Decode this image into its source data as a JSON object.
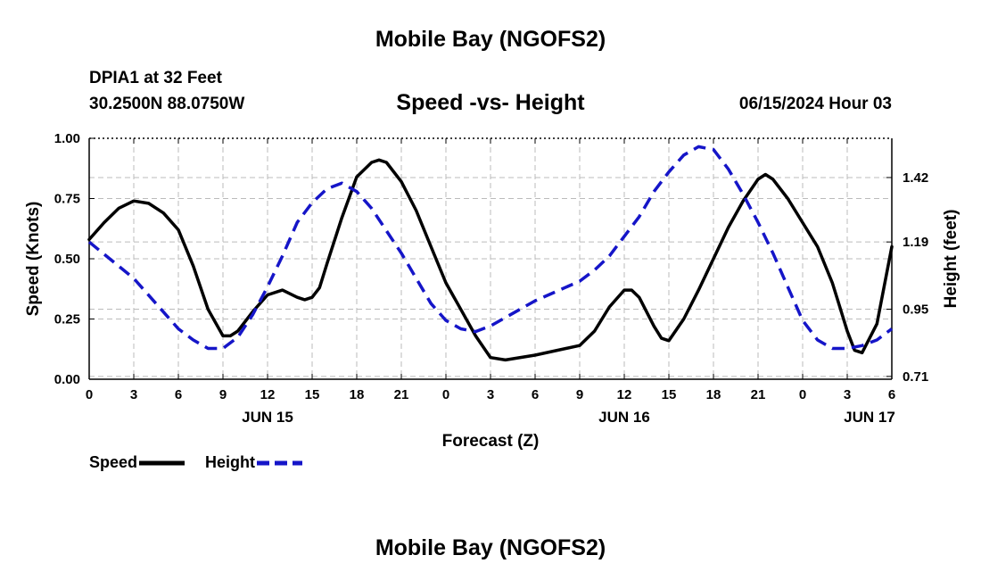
{
  "header": {
    "title": "Mobile Bay (NGOFS2)",
    "station": "DPIA1 at 32 Feet",
    "coords": "30.2500N  88.0750W",
    "subtitle": "Speed -vs- Height",
    "datetime": "06/15/2024 Hour 03"
  },
  "footer_title": "Mobile Bay (NGOFS2)",
  "colors": {
    "speed": "#000000",
    "height": "#1515c8",
    "grid": "#bbbbbb"
  },
  "chart_data": {
    "type": "line",
    "title": "Speed -vs- Height",
    "xlabel": "Forecast (Z)",
    "ylabel": "Speed (Knots)",
    "y2label": "Height (feet)",
    "x_range_hours": [
      0,
      54
    ],
    "x_ticks": [
      {
        "hour": 0,
        "label": "0"
      },
      {
        "hour": 3,
        "label": "3"
      },
      {
        "hour": 6,
        "label": "6"
      },
      {
        "hour": 9,
        "label": "9"
      },
      {
        "hour": 12,
        "label": "12"
      },
      {
        "hour": 15,
        "label": "15"
      },
      {
        "hour": 18,
        "label": "18"
      },
      {
        "hour": 21,
        "label": "21"
      },
      {
        "hour": 24,
        "label": "0"
      },
      {
        "hour": 27,
        "label": "3"
      },
      {
        "hour": 30,
        "label": "6"
      },
      {
        "hour": 33,
        "label": "9"
      },
      {
        "hour": 36,
        "label": "12"
      },
      {
        "hour": 39,
        "label": "15"
      },
      {
        "hour": 42,
        "label": "18"
      },
      {
        "hour": 45,
        "label": "21"
      },
      {
        "hour": 48,
        "label": "0"
      },
      {
        "hour": 51,
        "label": "3"
      },
      {
        "hour": 54,
        "label": "6"
      }
    ],
    "day_labels": [
      {
        "hour": 12,
        "label": "JUN 15"
      },
      {
        "hour": 36,
        "label": "JUN 16"
      },
      {
        "hour": 52.5,
        "label": "JUN 17"
      }
    ],
    "ylim": [
      0,
      1
    ],
    "yticks": [
      {
        "value": 0,
        "label": "0.00"
      },
      {
        "value": 0.25,
        "label": "0.25"
      },
      {
        "value": 0.5,
        "label": "0.50"
      },
      {
        "value": 0.75,
        "label": "0.75"
      },
      {
        "value": 1,
        "label": "1.00"
      }
    ],
    "y2lim": [
      0.7,
      1.56
    ],
    "y2ticks": [
      {
        "value": 0.71,
        "label": "0.71"
      },
      {
        "value": 0.95,
        "label": "0.95"
      },
      {
        "value": 1.19,
        "label": "1.19"
      },
      {
        "value": 1.42,
        "label": "1.42"
      }
    ],
    "series": [
      {
        "name": "Speed",
        "axis": "left",
        "style": "solid",
        "x": [
          0,
          1,
          2,
          3,
          4,
          5,
          6,
          7,
          8,
          9,
          9.5,
          10,
          11,
          12,
          13,
          14,
          14.5,
          15,
          15.5,
          16,
          17,
          18,
          19,
          19.5,
          20,
          21,
          22,
          23,
          24,
          25,
          26,
          27,
          28,
          30,
          33,
          34,
          35,
          36,
          36.5,
          37,
          38,
          38.5,
          39,
          40,
          41,
          42,
          43,
          44,
          45,
          45.5,
          46,
          47,
          48,
          49,
          50,
          50.5,
          51,
          51.5,
          52,
          53,
          54
        ],
        "values": [
          0.58,
          0.65,
          0.71,
          0.74,
          0.73,
          0.69,
          0.62,
          0.47,
          0.29,
          0.18,
          0.18,
          0.2,
          0.28,
          0.35,
          0.37,
          0.34,
          0.33,
          0.34,
          0.38,
          0.48,
          0.67,
          0.84,
          0.9,
          0.91,
          0.9,
          0.82,
          0.7,
          0.55,
          0.4,
          0.29,
          0.18,
          0.09,
          0.08,
          0.1,
          0.14,
          0.2,
          0.3,
          0.37,
          0.37,
          0.34,
          0.22,
          0.17,
          0.16,
          0.25,
          0.37,
          0.5,
          0.63,
          0.74,
          0.83,
          0.85,
          0.83,
          0.75,
          0.65,
          0.55,
          0.4,
          0.3,
          0.2,
          0.12,
          0.11,
          0.23,
          0.55
        ]
      },
      {
        "name": "Height",
        "axis": "right",
        "style": "dashed",
        "x": [
          0,
          3,
          6,
          7,
          8,
          9,
          10,
          11,
          12,
          13,
          14,
          15,
          16,
          17,
          18,
          19,
          20,
          21,
          22,
          23,
          24,
          25,
          26,
          27,
          30,
          33,
          34,
          35,
          36,
          37,
          38,
          39,
          40,
          41,
          42,
          43,
          44,
          45,
          46,
          47,
          48,
          49,
          50,
          51,
          52,
          53,
          54
        ],
        "values": [
          1.19,
          1.06,
          0.88,
          0.84,
          0.81,
          0.81,
          0.85,
          0.93,
          1.03,
          1.14,
          1.26,
          1.33,
          1.38,
          1.4,
          1.37,
          1.31,
          1.23,
          1.15,
          1.06,
          0.97,
          0.91,
          0.88,
          0.87,
          0.89,
          0.98,
          1.05,
          1.09,
          1.14,
          1.21,
          1.28,
          1.37,
          1.44,
          1.5,
          1.53,
          1.52,
          1.45,
          1.36,
          1.26,
          1.15,
          1.03,
          0.91,
          0.84,
          0.81,
          0.81,
          0.82,
          0.84,
          0.88
        ]
      }
    ],
    "grid": true,
    "legend_position": "bottom-left"
  }
}
